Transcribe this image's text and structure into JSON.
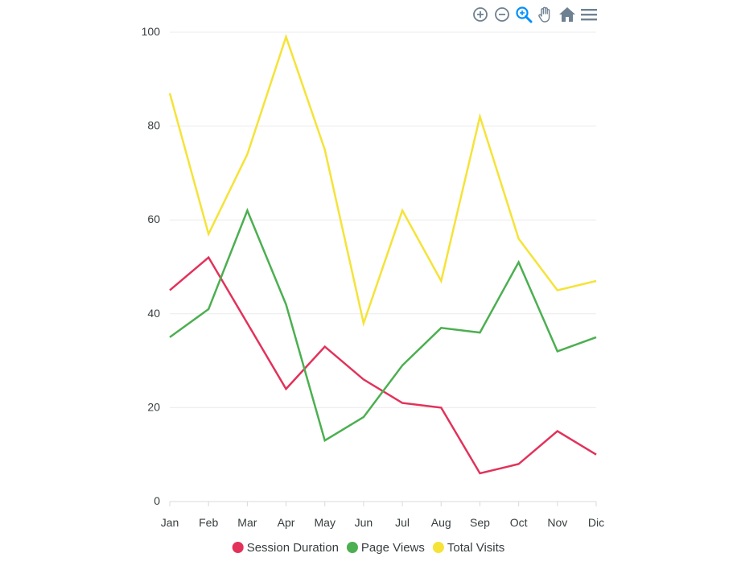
{
  "toolbar": {
    "icons": [
      "zoom-in-icon",
      "zoom-out-icon",
      "selection-zoom-icon",
      "pan-hand-icon",
      "home-reset-icon",
      "menu-icon"
    ],
    "icon_color": "#6e8192",
    "active_color": "#008ffb"
  },
  "chart_data": {
    "type": "line",
    "title": "",
    "xlabel": "",
    "ylabel": "",
    "categories": [
      "Jan",
      "Feb",
      "Mar",
      "Apr",
      "May",
      "Jun",
      "Jul",
      "Aug",
      "Sep",
      "Oct",
      "Nov",
      "Dic"
    ],
    "ylim": [
      0,
      100
    ],
    "yticks": [
      0,
      20,
      40,
      60,
      80,
      100
    ],
    "grid": true,
    "legend_position": "bottom",
    "series": [
      {
        "name": "Session Duration",
        "color": "#e2325a",
        "values": [
          45,
          52,
          38,
          24,
          33,
          26,
          21,
          20,
          6,
          8,
          15,
          10
        ]
      },
      {
        "name": "Page Views",
        "color": "#4caf50",
        "values": [
          35,
          41,
          62,
          42,
          13,
          18,
          29,
          37,
          36,
          51,
          32,
          35
        ]
      },
      {
        "name": "Total Visits",
        "color": "#f5e338",
        "values": [
          87,
          57,
          74,
          99,
          75,
          38,
          62,
          47,
          82,
          56,
          45,
          47
        ]
      }
    ]
  }
}
